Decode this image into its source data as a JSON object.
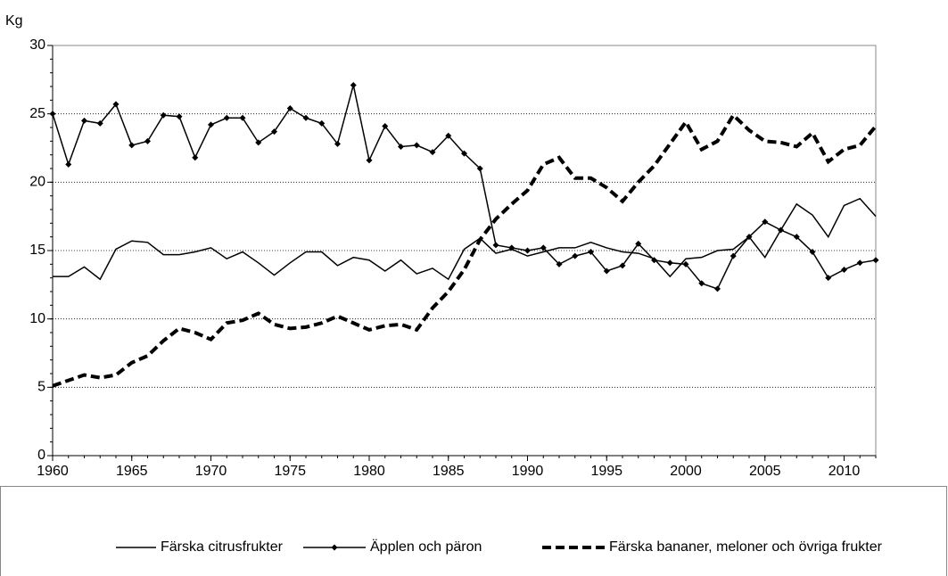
{
  "chart_data": {
    "type": "line",
    "y_axis_label": "Kg",
    "x": [
      1960,
      1961,
      1962,
      1963,
      1964,
      1965,
      1966,
      1967,
      1968,
      1969,
      1970,
      1971,
      1972,
      1973,
      1974,
      1975,
      1976,
      1977,
      1978,
      1979,
      1980,
      1981,
      1982,
      1983,
      1984,
      1985,
      1986,
      1987,
      1988,
      1989,
      1990,
      1991,
      1992,
      1993,
      1994,
      1995,
      1996,
      1997,
      1998,
      1999,
      2000,
      2001,
      2002,
      2003,
      2004,
      2005,
      2006,
      2007,
      2008,
      2009,
      2010,
      2011,
      2012
    ],
    "series": [
      {
        "name": "Färska citrusfrukter",
        "color": "#000000",
        "line_style": "solid",
        "marker": "none",
        "values": [
          13.1,
          13.1,
          13.8,
          12.9,
          15.1,
          15.7,
          15.6,
          14.7,
          14.7,
          14.9,
          15.2,
          14.4,
          14.9,
          14.1,
          13.2,
          14.1,
          14.9,
          14.9,
          13.9,
          14.5,
          14.3,
          13.5,
          14.3,
          13.3,
          13.7,
          12.9,
          15.1,
          15.9,
          14.8,
          15.1,
          14.6,
          14.9,
          15.2,
          15.2,
          15.6,
          15.2,
          14.9,
          14.8,
          14.4,
          13.1,
          14.4,
          14.5,
          15.0,
          15.1,
          16.0,
          14.5,
          16.5,
          18.4,
          17.6,
          16.0,
          18.3,
          18.8,
          17.5
        ]
      },
      {
        "name": "Äpplen och päron",
        "color": "#000000",
        "line_style": "solid",
        "marker": "diamond",
        "values": [
          25.0,
          21.3,
          24.5,
          24.3,
          25.7,
          22.7,
          23.0,
          24.9,
          24.8,
          21.8,
          24.2,
          24.7,
          24.7,
          22.9,
          23.7,
          25.4,
          24.7,
          24.3,
          22.8,
          27.1,
          21.6,
          24.1,
          22.6,
          22.7,
          22.2,
          23.4,
          22.1,
          21.0,
          15.4,
          15.2,
          15.0,
          15.2,
          14.0,
          14.6,
          14.9,
          13.5,
          13.9,
          15.5,
          14.3,
          14.1,
          14.0,
          12.6,
          12.2,
          14.6,
          16.0,
          17.1,
          16.5,
          16.0,
          14.9,
          13.0,
          13.6,
          14.1,
          14.3
        ]
      },
      {
        "name": "Färska bananer, meloner och övriga frukter",
        "color": "#000000",
        "line_style": "dashed",
        "marker": "none",
        "values": [
          5.1,
          5.5,
          5.9,
          5.7,
          5.9,
          6.8,
          7.3,
          8.4,
          9.3,
          9.0,
          8.5,
          9.7,
          9.9,
          10.4,
          9.6,
          9.3,
          9.4,
          9.7,
          10.2,
          9.7,
          9.2,
          9.5,
          9.6,
          9.2,
          10.8,
          12.0,
          13.6,
          15.8,
          17.3,
          18.4,
          19.4,
          21.3,
          21.8,
          20.3,
          20.3,
          19.6,
          18.6,
          20.0,
          21.2,
          22.8,
          24.4,
          22.4,
          23.0,
          24.9,
          23.8,
          23.0,
          22.9,
          22.6,
          23.6,
          21.5,
          22.4,
          22.7,
          24.1
        ]
      }
    ],
    "xlim": [
      1960,
      2012
    ],
    "xticks": [
      1960,
      1965,
      1970,
      1975,
      1980,
      1985,
      1990,
      1995,
      2000,
      2005,
      2010
    ],
    "ylim": [
      0,
      30
    ],
    "yticks": [
      0,
      5,
      10,
      15,
      20,
      25,
      30
    ],
    "grid": true,
    "legend": "bottom"
  }
}
